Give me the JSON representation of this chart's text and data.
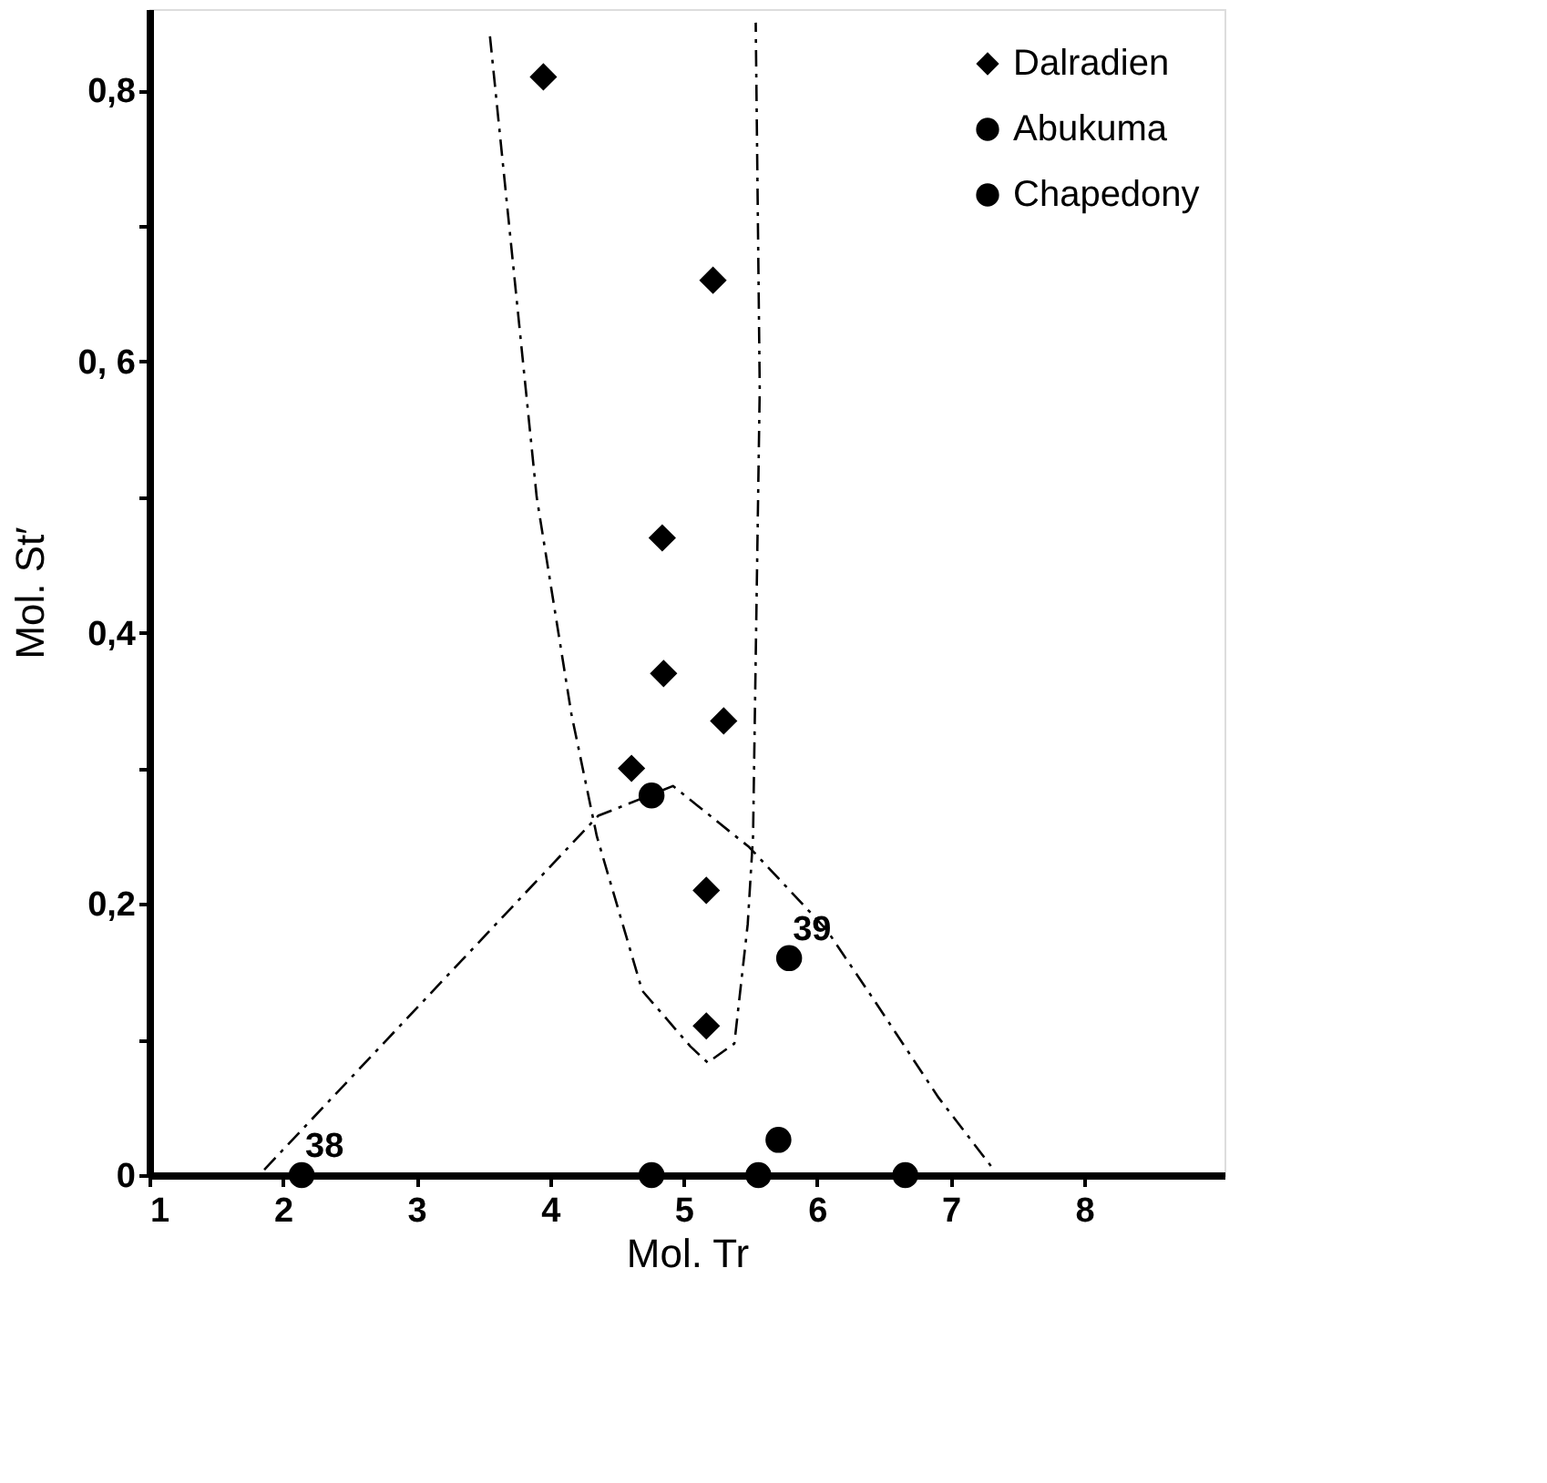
{
  "chart_data": {
    "type": "scatter",
    "xlabel": "Mol. Tr",
    "ylabel": "Mol. St′",
    "xlim": [
      1,
      9.05
    ],
    "ylim": [
      0,
      0.86
    ],
    "xticks": [
      1,
      2,
      3,
      4,
      5,
      6,
      7,
      8
    ],
    "yticks": [
      {
        "value": 0,
        "label": "0"
      },
      {
        "value": 0.1,
        "label": null
      },
      {
        "value": 0.2,
        "label": "0,2"
      },
      {
        "value": 0.3,
        "label": null
      },
      {
        "value": 0.4,
        "label": "0,4"
      },
      {
        "value": 0.5,
        "label": null
      },
      {
        "value": 0.6,
        "label": "0, 6"
      },
      {
        "value": 0.7,
        "label": null
      },
      {
        "value": 0.8,
        "label": "0,8"
      }
    ],
    "grid": false,
    "legend": "top right",
    "series": [
      {
        "name": "Dalradien",
        "type": "scatter",
        "marker": "diamond",
        "color": "#000000",
        "x": [
          3.95,
          5.22,
          4.84,
          4.85,
          5.3,
          4.61,
          5.17,
          5.17
        ],
        "values": [
          0.81,
          0.66,
          0.47,
          0.37,
          0.335,
          0.3,
          0.21,
          0.11
        ]
      },
      {
        "name": "Abukuma",
        "type": "scatter",
        "marker": "circle",
        "color": "#000000",
        "x": [
          4.76,
          4.76,
          5.56,
          5.71,
          6.66
        ],
        "values": [
          0.28,
          0,
          0,
          0.026,
          0
        ]
      },
      {
        "name": "Chapedony",
        "type": "scatter",
        "marker": "circle",
        "color": "#000000",
        "x": [
          5.79,
          2.14
        ],
        "values": [
          0.16,
          0
        ]
      },
      {
        "type": "line",
        "marker": "none",
        "line_style": "dashed",
        "color": "#000000",
        "x": [
          3.55,
          3.9,
          4.16,
          4.35,
          4.69,
          5.05,
          5.18,
          5.38,
          5.48,
          5.52,
          5.57,
          5.54
        ],
        "values": [
          0.84,
          0.5,
          0.34,
          0.25,
          0.136,
          0.095,
          0.083,
          0.097,
          0.185,
          0.25,
          0.58,
          0.85
        ]
      },
      {
        "type": "line",
        "marker": "none",
        "line_style": "dashed",
        "color": "#000000",
        "x": [
          1.86,
          4.36,
          4.92,
          5.49,
          6.07,
          6.42,
          6.91,
          7.33
        ],
        "values": [
          0.004,
          0.265,
          0.287,
          0.242,
          0.181,
          0.13,
          0.057,
          0.003
        ]
      }
    ],
    "annotations": [
      {
        "text": "38",
        "x": 2.14,
        "y": 0
      },
      {
        "text": "39",
        "x": 5.79,
        "y": 0.16
      }
    ]
  }
}
